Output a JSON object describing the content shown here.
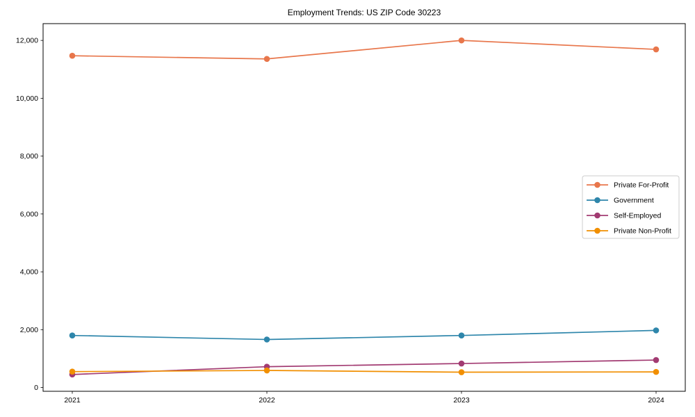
{
  "chart_data": {
    "type": "line",
    "title": "Employment Trends: US ZIP Code 30223",
    "xlabel": "",
    "ylabel": "",
    "categories": [
      2021,
      2022,
      2023,
      2024
    ],
    "series": [
      {
        "name": "Private For-Profit",
        "color": "#E8764B",
        "values": [
          11470,
          11360,
          12000,
          11690
        ]
      },
      {
        "name": "Government",
        "color": "#2E86AB",
        "values": [
          1800,
          1660,
          1800,
          1975
        ]
      },
      {
        "name": "Self-Employed",
        "color": "#A23B72",
        "values": [
          450,
          720,
          830,
          950
        ]
      },
      {
        "name": "Private Non-Profit",
        "color": "#F18F01",
        "values": [
          550,
          590,
          530,
          540
        ]
      }
    ],
    "yticks": [
      0,
      2000,
      4000,
      6000,
      8000,
      10000,
      12000
    ],
    "ytick_labels": [
      "0",
      "2,000",
      "4,000",
      "6,000",
      "8,000",
      "10,000",
      "12,000"
    ],
    "xtick_labels": [
      "2021",
      "2022",
      "2023",
      "2024"
    ],
    "ylim": [
      -130,
      12580
    ],
    "xlim": [
      2020.85,
      2024.15
    ],
    "grid": false,
    "legend_position": "center-right",
    "legend_frame": true,
    "axis_color": "#000000",
    "legend_border_color": "#cccccc"
  }
}
